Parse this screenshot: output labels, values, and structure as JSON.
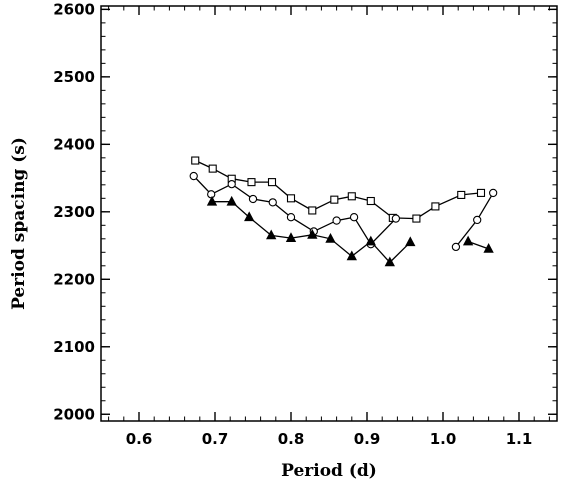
{
  "chart_data": {
    "type": "scatter",
    "title": "",
    "xlabel": "Period (d)",
    "ylabel": "Period spacing (s)",
    "xlim": [
      0.55,
      1.15
    ],
    "ylim": [
      1990,
      2605
    ],
    "x_ticks": [
      {
        "value": 0.6,
        "label": "0.6"
      },
      {
        "value": 0.7,
        "label": "0.7"
      },
      {
        "value": 0.8,
        "label": "0.8"
      },
      {
        "value": 0.9,
        "label": "0.9"
      },
      {
        "value": 1.0,
        "label": "1.0"
      },
      {
        "value": 1.1,
        "label": "1.1"
      }
    ],
    "y_ticks": [
      {
        "value": 2000,
        "label": "2000"
      },
      {
        "value": 2100,
        "label": "2100"
      },
      {
        "value": 2200,
        "label": "2200"
      },
      {
        "value": 2300,
        "label": "2300"
      },
      {
        "value": 2400,
        "label": "2400"
      },
      {
        "value": 2500,
        "label": "2500"
      },
      {
        "value": 2600,
        "label": "2600"
      }
    ],
    "x_minor_step": 0.02,
    "y_minor_step": 20,
    "grid": false,
    "legend": "none",
    "series": [
      {
        "marker": "square",
        "segments": [
          [
            [
              0.674,
              2376
            ],
            [
              0.697,
              2364
            ],
            [
              0.722,
              2349
            ],
            [
              0.748,
              2344
            ],
            [
              0.775,
              2344
            ],
            [
              0.8,
              2320
            ],
            [
              0.828,
              2302
            ],
            [
              0.857,
              2318
            ],
            [
              0.88,
              2323
            ],
            [
              0.905,
              2316
            ],
            [
              0.934,
              2291
            ],
            [
              0.965,
              2290
            ],
            [
              0.99,
              2308
            ],
            [
              1.024,
              2325
            ],
            [
              1.05,
              2328
            ]
          ]
        ]
      },
      {
        "marker": "circle",
        "segments": [
          [
            [
              0.672,
              2353
            ],
            [
              0.695,
              2326
            ],
            [
              0.722,
              2341
            ],
            [
              0.75,
              2319
            ],
            [
              0.776,
              2314
            ],
            [
              0.8,
              2292
            ],
            [
              0.83,
              2271
            ],
            [
              0.86,
              2287
            ],
            [
              0.883,
              2292
            ],
            [
              0.905,
              2252
            ],
            [
              0.938,
              2290
            ]
          ],
          [
            [
              1.017,
              2248
            ],
            [
              1.045,
              2288
            ],
            [
              1.066,
              2328
            ]
          ]
        ]
      },
      {
        "marker": "triangle",
        "segments": [
          [
            [
              0.696,
              2315
            ],
            [
              0.722,
              2315
            ],
            [
              0.745,
              2292
            ],
            [
              0.774,
              2265
            ],
            [
              0.8,
              2261
            ],
            [
              0.828,
              2266
            ],
            [
              0.852,
              2260
            ],
            [
              0.88,
              2234
            ],
            [
              0.905,
              2256
            ],
            [
              0.93,
              2225
            ],
            [
              0.957,
              2255
            ]
          ],
          [
            [
              1.033,
              2256
            ],
            [
              1.06,
              2245
            ]
          ]
        ]
      }
    ]
  }
}
